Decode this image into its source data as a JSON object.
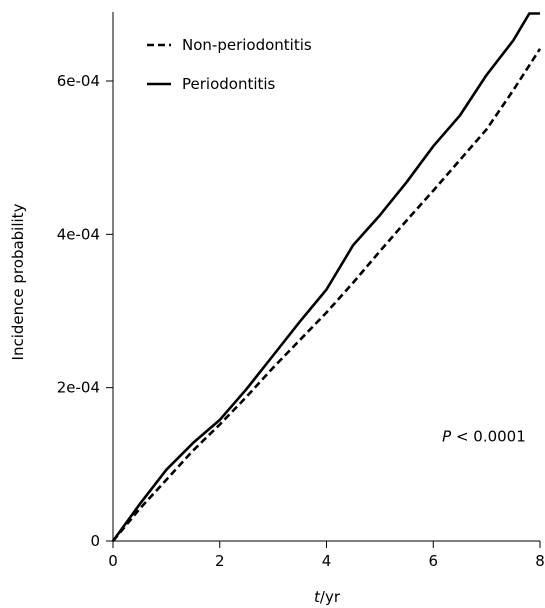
{
  "chart_data": {
    "type": "line",
    "title": "",
    "xlabel": {
      "italic": "t",
      "rest": "/yr"
    },
    "ylabel": "Incidence probability",
    "xlim": [
      0,
      8
    ],
    "ylim": [
      0,
      0.00069
    ],
    "grid": false,
    "legend_position": "top-left",
    "x_ticks": [
      0,
      2,
      4,
      6,
      8
    ],
    "x_tick_labels": [
      "0",
      "2",
      "4",
      "6",
      "8"
    ],
    "y_ticks": [
      0,
      0.0002,
      0.0004,
      0.0006
    ],
    "y_tick_labels": [
      "0",
      "2e-04",
      "4e-04",
      "6e-04"
    ],
    "annotation": {
      "italic": "P",
      "rest": " < 0.0001",
      "x": 6.95,
      "y": 0.00013
    },
    "series": [
      {
        "name": "Non-periodontitis",
        "style": "dashed",
        "color": "#000000",
        "x": [
          0,
          0.5,
          1,
          1.5,
          2,
          2.5,
          3,
          3.5,
          4,
          4.5,
          5,
          5.5,
          6,
          6.5,
          7,
          7.5,
          8
        ],
        "y": [
          0,
          4.2e-05,
          8e-05,
          0.000118,
          0.000152,
          0.000188,
          0.000226,
          0.000262,
          0.000298,
          0.000337,
          0.000378,
          0.000418,
          0.000457,
          0.000497,
          0.000537,
          0.000588,
          0.000642
        ]
      },
      {
        "name": "Periodontitis",
        "style": "solid",
        "color": "#000000",
        "x": [
          0,
          0.5,
          1,
          1.5,
          2,
          2.5,
          3,
          3.5,
          4,
          4.5,
          5,
          5.5,
          6,
          6.5,
          7,
          7.5,
          7.8,
          8
        ],
        "y": [
          0,
          4.8e-05,
          9.3e-05,
          0.000128,
          0.000158,
          0.000198,
          0.000242,
          0.000286,
          0.000328,
          0.000386,
          0.000425,
          0.000468,
          0.000515,
          0.000555,
          0.000608,
          0.000653,
          0.000688,
          0.000688
        ]
      }
    ]
  }
}
